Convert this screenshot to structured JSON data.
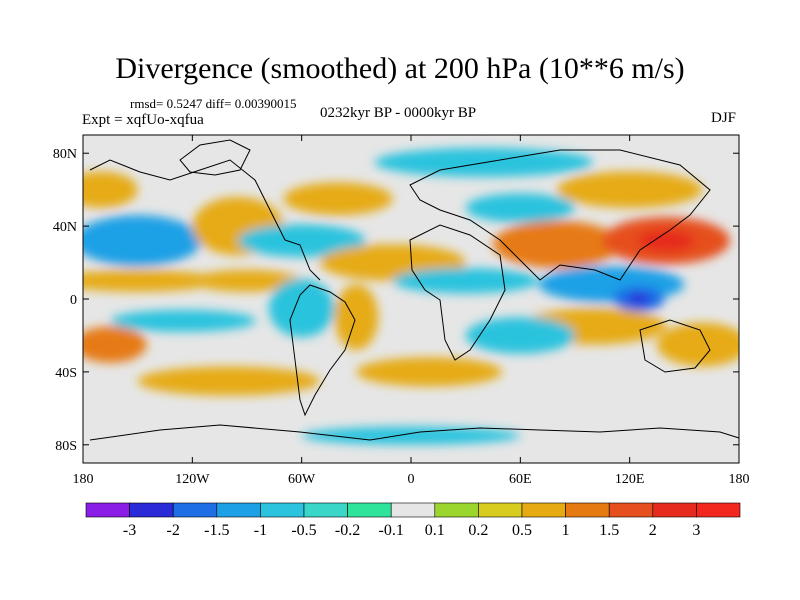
{
  "chart_data": {
    "type": "heatmap",
    "title": "Divergence (smoothed) at 200 hPa (10**6 m/s)",
    "stats_label": "rmsd= 0.5247 diff= 0.00390015",
    "experiment_label": "Expt = xqfUo-xqfua",
    "period_label": "0232kyr BP - 0000kyr BP",
    "season_label": "DJF",
    "x_axis": {
      "range": [
        -180,
        180
      ],
      "ticks": [
        -180,
        -120,
        -60,
        0,
        60,
        120,
        180
      ],
      "tick_labels": [
        "180",
        "120W",
        "60W",
        "0",
        "60E",
        "120E",
        "180"
      ]
    },
    "y_axis": {
      "range": [
        -90,
        90
      ],
      "ticks": [
        80,
        40,
        0,
        -40,
        -80
      ],
      "tick_labels": [
        "80N",
        "40N",
        "0",
        "40S",
        "80S"
      ]
    },
    "colorbar": {
      "levels": [
        "-3",
        "-2",
        "-1.5",
        "-1",
        "-0.5",
        "-0.2",
        "-0.1",
        "0.1",
        "0.2",
        "0.5",
        "1",
        "1.5",
        "2",
        "3"
      ],
      "colors": [
        "#8a1ee6",
        "#2a2ad8",
        "#1f6ee6",
        "#1ea0e6",
        "#2cc3de",
        "#3ad6c8",
        "#2ee39a",
        "#e6e6e6",
        "#9ad62e",
        "#d8cc1e",
        "#e6ab12",
        "#e67a12",
        "#e6501e",
        "#e62a1e",
        "#f2281e"
      ]
    },
    "fields": [
      {
        "lon": -150,
        "lat": 32,
        "rx": 35,
        "ry": 14,
        "value": -1.3
      },
      {
        "lon": -150,
        "lat": 10,
        "rx": 45,
        "ry": 6,
        "value": 0.8
      },
      {
        "lon": -165,
        "lat": -25,
        "rx": 20,
        "ry": 10,
        "value": 1.0
      },
      {
        "lon": -125,
        "lat": -12,
        "rx": 40,
        "ry": 6,
        "value": -0.6
      },
      {
        "lon": -95,
        "lat": 40,
        "rx": 25,
        "ry": 16,
        "value": 0.8
      },
      {
        "lon": -60,
        "lat": 32,
        "rx": 35,
        "ry": 9,
        "value": -0.6
      },
      {
        "lon": -40,
        "lat": 55,
        "rx": 30,
        "ry": 9,
        "value": 0.8
      },
      {
        "lon": -90,
        "lat": 10,
        "rx": 30,
        "ry": 6,
        "value": 0.6
      },
      {
        "lon": -60,
        "lat": -5,
        "rx": 18,
        "ry": 16,
        "value": -1.0
      },
      {
        "lon": -30,
        "lat": -10,
        "rx": 12,
        "ry": 18,
        "value": 0.8
      },
      {
        "lon": -10,
        "lat": 20,
        "rx": 40,
        "ry": 10,
        "value": 0.5
      },
      {
        "lon": 30,
        "lat": 10,
        "rx": 40,
        "ry": 7,
        "value": -0.7
      },
      {
        "lon": 80,
        "lat": 30,
        "rx": 35,
        "ry": 13,
        "value": 1.4
      },
      {
        "lon": 140,
        "lat": 32,
        "rx": 35,
        "ry": 13,
        "value": 1.8
      },
      {
        "lon": 110,
        "lat": 8,
        "rx": 40,
        "ry": 10,
        "value": -1.2
      },
      {
        "lon": 125,
        "lat": 0,
        "rx": 14,
        "ry": 7,
        "value": -2.0
      },
      {
        "lon": 100,
        "lat": -15,
        "rx": 40,
        "ry": 10,
        "value": 0.6
      },
      {
        "lon": 60,
        "lat": -20,
        "rx": 30,
        "ry": 10,
        "value": -0.6
      },
      {
        "lon": 160,
        "lat": -25,
        "rx": 25,
        "ry": 12,
        "value": 0.8
      },
      {
        "lon": 10,
        "lat": -40,
        "rx": 40,
        "ry": 8,
        "value": 0.6
      },
      {
        "lon": -100,
        "lat": -45,
        "rx": 50,
        "ry": 8,
        "value": 0.5
      },
      {
        "lon": 40,
        "lat": 75,
        "rx": 60,
        "ry": 8,
        "value": -0.8
      },
      {
        "lon": 120,
        "lat": 60,
        "rx": 40,
        "ry": 10,
        "value": 0.8
      },
      {
        "lon": 60,
        "lat": 50,
        "rx": 30,
        "ry": 8,
        "value": -0.6
      },
      {
        "lon": -170,
        "lat": 60,
        "rx": 20,
        "ry": 10,
        "value": 0.8
      },
      {
        "lon": 0,
        "lat": -75,
        "rx": 60,
        "ry": 5,
        "value": -0.6
      }
    ]
  }
}
